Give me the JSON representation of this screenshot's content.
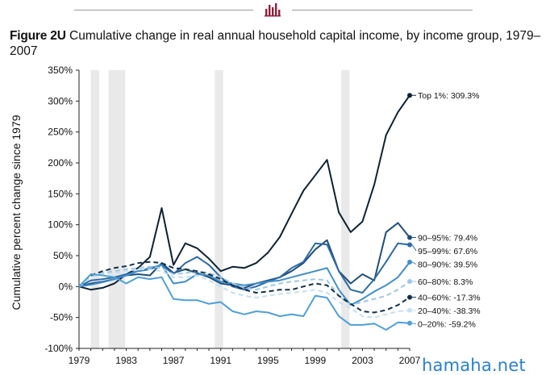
{
  "header": {
    "logo_icon": "bar-chart-logo-icon"
  },
  "figure": {
    "label": "Figure 2U",
    "title": "Cumulative change in real annual  household capital income, by income group, 1979–2007"
  },
  "watermark": "hamaha.net",
  "chart_data": {
    "type": "line",
    "title": "Cumulative change in real annual  household capital income, by income group, 1979–2007",
    "xlabel": "",
    "ylabel": "Cumulative percent change since 1979",
    "x": [
      1979,
      1980,
      1981,
      1982,
      1983,
      1984,
      1985,
      1986,
      1987,
      1988,
      1989,
      1990,
      1991,
      1992,
      1993,
      1994,
      1995,
      1996,
      1997,
      1998,
      1999,
      2000,
      2001,
      2002,
      2003,
      2004,
      2005,
      2006,
      2007
    ],
    "x_ticks": [
      "1979",
      "1983",
      "1987",
      "1991",
      "1995",
      "1999",
      "2003",
      "2007"
    ],
    "y_ticks": [
      "-100%",
      "-50%",
      "0%",
      "50%",
      "100%",
      "150%",
      "200%",
      "250%",
      "300%",
      "350%"
    ],
    "ylim": [
      -100,
      350
    ],
    "xlim": [
      1979,
      2007
    ],
    "grid": false,
    "recession_bands": [
      [
        1980.0,
        1980.7
      ],
      [
        1981.5,
        1982.9
      ],
      [
        1990.5,
        1991.2
      ],
      [
        2001.2,
        2001.9
      ]
    ],
    "series": [
      {
        "name": "Top 1%",
        "end_label": "Top 1%: 309.3%",
        "color": "#0d2233",
        "dash": false,
        "values": [
          0,
          -5,
          -2,
          5,
          20,
          30,
          48,
          127,
          35,
          70,
          62,
          45,
          25,
          32,
          30,
          38,
          55,
          80,
          118,
          155,
          180,
          205,
          120,
          88,
          105,
          165,
          245,
          282,
          309.3
        ]
      },
      {
        "name": "90–95%",
        "end_label": "90–95%: 79.4%",
        "color": "#1f4e79",
        "dash": false,
        "values": [
          0,
          5,
          8,
          12,
          18,
          20,
          18,
          38,
          22,
          28,
          22,
          15,
          5,
          2,
          -2,
          5,
          10,
          15,
          25,
          38,
          60,
          75,
          25,
          5,
          20,
          10,
          88,
          103,
          79.4
        ]
      },
      {
        "name": "95–99%",
        "end_label": "95–99%: 67.6%",
        "color": "#2d6aa6",
        "dash": false,
        "values": [
          0,
          10,
          12,
          15,
          20,
          25,
          28,
          35,
          20,
          38,
          48,
          35,
          15,
          0,
          -5,
          0,
          8,
          15,
          30,
          40,
          70,
          68,
          25,
          -5,
          -10,
          12,
          40,
          70,
          67.6
        ]
      },
      {
        "name": "80–90%",
        "end_label": "80–90%: 39.5%",
        "color": "#3f8ecb",
        "dash": false,
        "values": [
          0,
          3,
          7,
          12,
          18,
          25,
          30,
          35,
          5,
          8,
          20,
          18,
          8,
          5,
          2,
          5,
          8,
          10,
          15,
          20,
          25,
          30,
          -5,
          -30,
          -20,
          -8,
          2,
          15,
          39.5
        ]
      },
      {
        "name": "60–80%",
        "end_label": "60–80%: 8.3%",
        "color": "#9fc8e8",
        "dash": true,
        "values": [
          0,
          15,
          22,
          25,
          28,
          30,
          32,
          30,
          20,
          22,
          25,
          22,
          15,
          5,
          -2,
          -5,
          0,
          5,
          8,
          10,
          12,
          10,
          -15,
          -30,
          -25,
          -20,
          -15,
          -5,
          8.3
        ]
      },
      {
        "name": "40–60%",
        "end_label": "40–60%: -17.3%",
        "color": "#12304b",
        "dash": true,
        "values": [
          0,
          18,
          25,
          30,
          33,
          38,
          40,
          38,
          30,
          28,
          25,
          20,
          12,
          2,
          -5,
          -10,
          -8,
          -5,
          -5,
          0,
          5,
          2,
          -15,
          -28,
          -40,
          -42,
          -38,
          -30,
          -17.3
        ]
      },
      {
        "name": "20–40%",
        "end_label": "20–40%: -38.3%",
        "color": "#c7dff2",
        "dash": true,
        "values": [
          0,
          15,
          20,
          22,
          25,
          28,
          28,
          25,
          15,
          15,
          18,
          10,
          0,
          -10,
          -15,
          -18,
          -15,
          -12,
          -10,
          -8,
          -5,
          -10,
          -25,
          -35,
          -48,
          -50,
          -45,
          -40,
          -38.3
        ]
      },
      {
        "name": "0–20%",
        "end_label": "0–20%: -59.2%",
        "color": "#4f9fd8",
        "dash": false,
        "values": [
          0,
          20,
          18,
          15,
          5,
          15,
          12,
          15,
          -20,
          -22,
          -22,
          -28,
          -25,
          -40,
          -45,
          -40,
          -42,
          -48,
          -45,
          -48,
          -15,
          -18,
          -48,
          -62,
          -62,
          -60,
          -70,
          -58,
          -59.2
        ]
      }
    ]
  }
}
